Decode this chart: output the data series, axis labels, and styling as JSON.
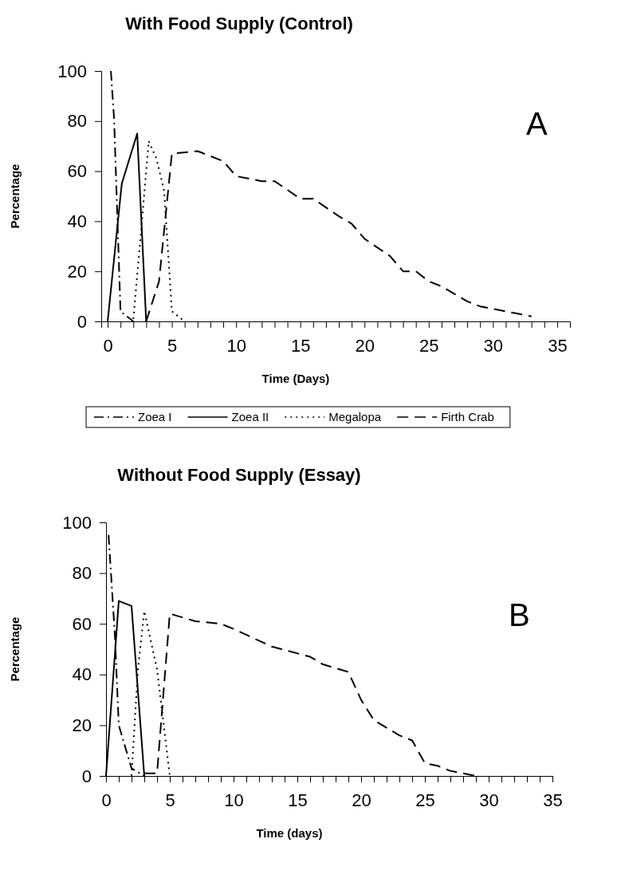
{
  "chart_data": [
    {
      "type": "line",
      "title": "With Food Supply (Control)",
      "xlabel": "Time (Days)",
      "ylabel": "Percentage",
      "annotations": [
        "A"
      ],
      "legend": "bottom",
      "grid": false,
      "marker": "none",
      "xlim": [
        -0.5,
        36
      ],
      "ylim": [
        0,
        100
      ],
      "yticks": [
        0,
        20,
        40,
        60,
        80,
        100
      ],
      "xticks": [
        0,
        {
          "value": 1,
          "label": null
        },
        {
          "value": 2,
          "label": null
        },
        {
          "value": 3,
          "label": null
        },
        {
          "value": 4,
          "label": null
        },
        5,
        {
          "value": 6,
          "label": null
        },
        {
          "value": 7,
          "label": null
        },
        {
          "value": 8,
          "label": null
        },
        {
          "value": 9,
          "label": null
        },
        10,
        {
          "value": 11,
          "label": null
        },
        {
          "value": 12,
          "label": null
        },
        {
          "value": 13,
          "label": null
        },
        {
          "value": 14,
          "label": null
        },
        15,
        {
          "value": 16,
          "label": null
        },
        {
          "value": 17,
          "label": null
        },
        {
          "value": 18,
          "label": null
        },
        {
          "value": 19,
          "label": null
        },
        20,
        {
          "value": 21,
          "label": null
        },
        {
          "value": 22,
          "label": null
        },
        {
          "value": 23,
          "label": null
        },
        {
          "value": 24,
          "label": null
        },
        25,
        {
          "value": 26,
          "label": null
        },
        {
          "value": 27,
          "label": null
        },
        {
          "value": 28,
          "label": null
        },
        {
          "value": 29,
          "label": null
        },
        30,
        {
          "value": 31,
          "label": null
        },
        {
          "value": 32,
          "label": null
        },
        {
          "value": 33,
          "label": null
        },
        {
          "value": 34,
          "label": null
        },
        35
      ],
      "series": [
        {
          "name": "Zoea I",
          "color": "#000000",
          "line_style": "dashdot",
          "x": [
            0.25,
            0.5,
            1,
            2
          ],
          "values": [
            100,
            81,
            4,
            0
          ]
        },
        {
          "name": "Zoea II",
          "color": "#000000",
          "line_style": "solid",
          "x": [
            0,
            1.1,
            2.3,
            3
          ],
          "values": [
            0,
            55,
            75,
            0
          ]
        },
        {
          "name": "Megalopa",
          "color": "#000000",
          "line_style": "dotted",
          "x": [
            2,
            2.5,
            3.2,
            3.8,
            4.4,
            5,
            6
          ],
          "values": [
            1,
            30,
            72,
            65,
            52,
            4,
            0
          ]
        },
        {
          "name": "Firth Crab",
          "color": "#000000",
          "line_style": "dashed",
          "x": [
            3,
            4,
            5,
            7,
            9,
            10,
            12,
            13,
            15,
            16,
            18,
            19,
            20,
            22,
            23,
            24,
            25,
            26,
            28,
            29,
            30,
            31,
            32,
            33
          ],
          "values": [
            0,
            16,
            67,
            68,
            64,
            58,
            56,
            56,
            49,
            49,
            42,
            39,
            33,
            26,
            20,
            20,
            16,
            14,
            8,
            6,
            5,
            4,
            3,
            2
          ]
        }
      ]
    },
    {
      "type": "line",
      "title": "Without Food Supply (Essay)",
      "xlabel": "Time (days)",
      "ylabel": "Percentage",
      "annotations": [
        "B"
      ],
      "grid": false,
      "marker": "none",
      "xlim": [
        0,
        35
      ],
      "ylim": [
        0,
        100
      ],
      "yticks": [
        0,
        20,
        40,
        60,
        80,
        100
      ],
      "xticks": [
        0,
        {
          "value": 1,
          "label": null
        },
        {
          "value": 2,
          "label": null
        },
        {
          "value": 3,
          "label": null
        },
        {
          "value": 4,
          "label": null
        },
        5,
        {
          "value": 6,
          "label": null
        },
        {
          "value": 7,
          "label": null
        },
        {
          "value": 8,
          "label": null
        },
        {
          "value": 9,
          "label": null
        },
        10,
        {
          "value": 11,
          "label": null
        },
        {
          "value": 12,
          "label": null
        },
        {
          "value": 13,
          "label": null
        },
        {
          "value": 14,
          "label": null
        },
        15,
        {
          "value": 16,
          "label": null
        },
        {
          "value": 17,
          "label": null
        },
        {
          "value": 18,
          "label": null
        },
        {
          "value": 19,
          "label": null
        },
        20,
        {
          "value": 21,
          "label": null
        },
        {
          "value": 22,
          "label": null
        },
        {
          "value": 23,
          "label": null
        },
        {
          "value": 24,
          "label": null
        },
        25,
        {
          "value": 26,
          "label": null
        },
        {
          "value": 27,
          "label": null
        },
        {
          "value": 28,
          "label": null
        },
        {
          "value": 29,
          "label": null
        },
        30,
        {
          "value": 31,
          "label": null
        },
        {
          "value": 32,
          "label": null
        },
        {
          "value": 33,
          "label": null
        },
        {
          "value": 34,
          "label": null
        },
        35
      ],
      "series": [
        {
          "color": "#000000",
          "line_style": "dashdot",
          "x": [
            0.2,
            0.7,
            1,
            2,
            3
          ],
          "values": [
            95,
            55,
            20,
            3,
            0
          ]
        },
        {
          "color": "#000000",
          "line_style": "solid",
          "x": [
            0,
            1,
            2,
            3
          ],
          "values": [
            0,
            69,
            67,
            0
          ]
        },
        {
          "color": "#000000",
          "line_style": "dotted",
          "x": [
            2,
            2.5,
            3,
            4,
            5
          ],
          "values": [
            0,
            42,
            65,
            42,
            0
          ]
        },
        {
          "color": "#000000",
          "line_style": "dashed",
          "x": [
            3,
            4,
            5,
            7,
            9,
            10,
            13,
            16,
            17,
            19,
            20,
            21,
            23,
            24,
            25,
            26,
            27,
            29
          ],
          "values": [
            1,
            1,
            64,
            61,
            60,
            58,
            51,
            47,
            44,
            41,
            30,
            22,
            16,
            14,
            5,
            4,
            2,
            0
          ]
        }
      ]
    }
  ]
}
